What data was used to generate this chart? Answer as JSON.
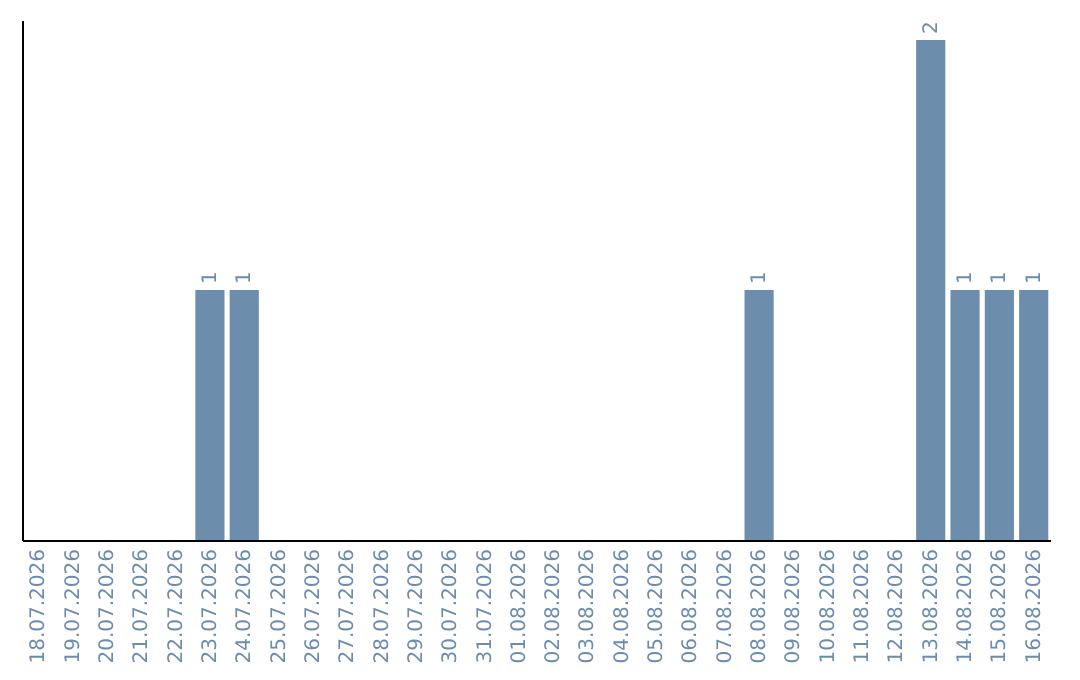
{
  "chart_data": {
    "type": "bar",
    "categories": [
      "18.07.2026",
      "19.07.2026",
      "20.07.2026",
      "21.07.2026",
      "22.07.2026",
      "23.07.2026",
      "24.07.2026",
      "25.07.2026",
      "26.07.2026",
      "27.07.2026",
      "28.07.2026",
      "29.07.2026",
      "30.07.2026",
      "31.07.2026",
      "01.08.2026",
      "02.08.2026",
      "03.08.2026",
      "04.08.2026",
      "05.08.2026",
      "06.08.2026",
      "07.08.2026",
      "08.08.2026",
      "09.08.2026",
      "10.08.2026",
      "11.08.2026",
      "12.08.2026",
      "13.08.2026",
      "14.08.2026",
      "15.08.2026",
      "16.08.2026"
    ],
    "values": [
      0,
      0,
      0,
      0,
      0,
      1,
      1,
      0,
      0,
      0,
      0,
      0,
      0,
      0,
      0,
      0,
      0,
      0,
      0,
      0,
      0,
      1,
      0,
      0,
      0,
      0,
      2,
      1,
      1,
      1
    ],
    "value_labels": [
      null,
      null,
      null,
      null,
      null,
      "1",
      "1",
      null,
      null,
      null,
      null,
      null,
      null,
      null,
      null,
      null,
      null,
      null,
      null,
      null,
      null,
      "1",
      null,
      null,
      null,
      null,
      "2",
      "1",
      "1",
      "1"
    ],
    "color": "#6d8dad",
    "ylim": [
      0,
      2.08
    ],
    "tick_labels": "x"
  }
}
